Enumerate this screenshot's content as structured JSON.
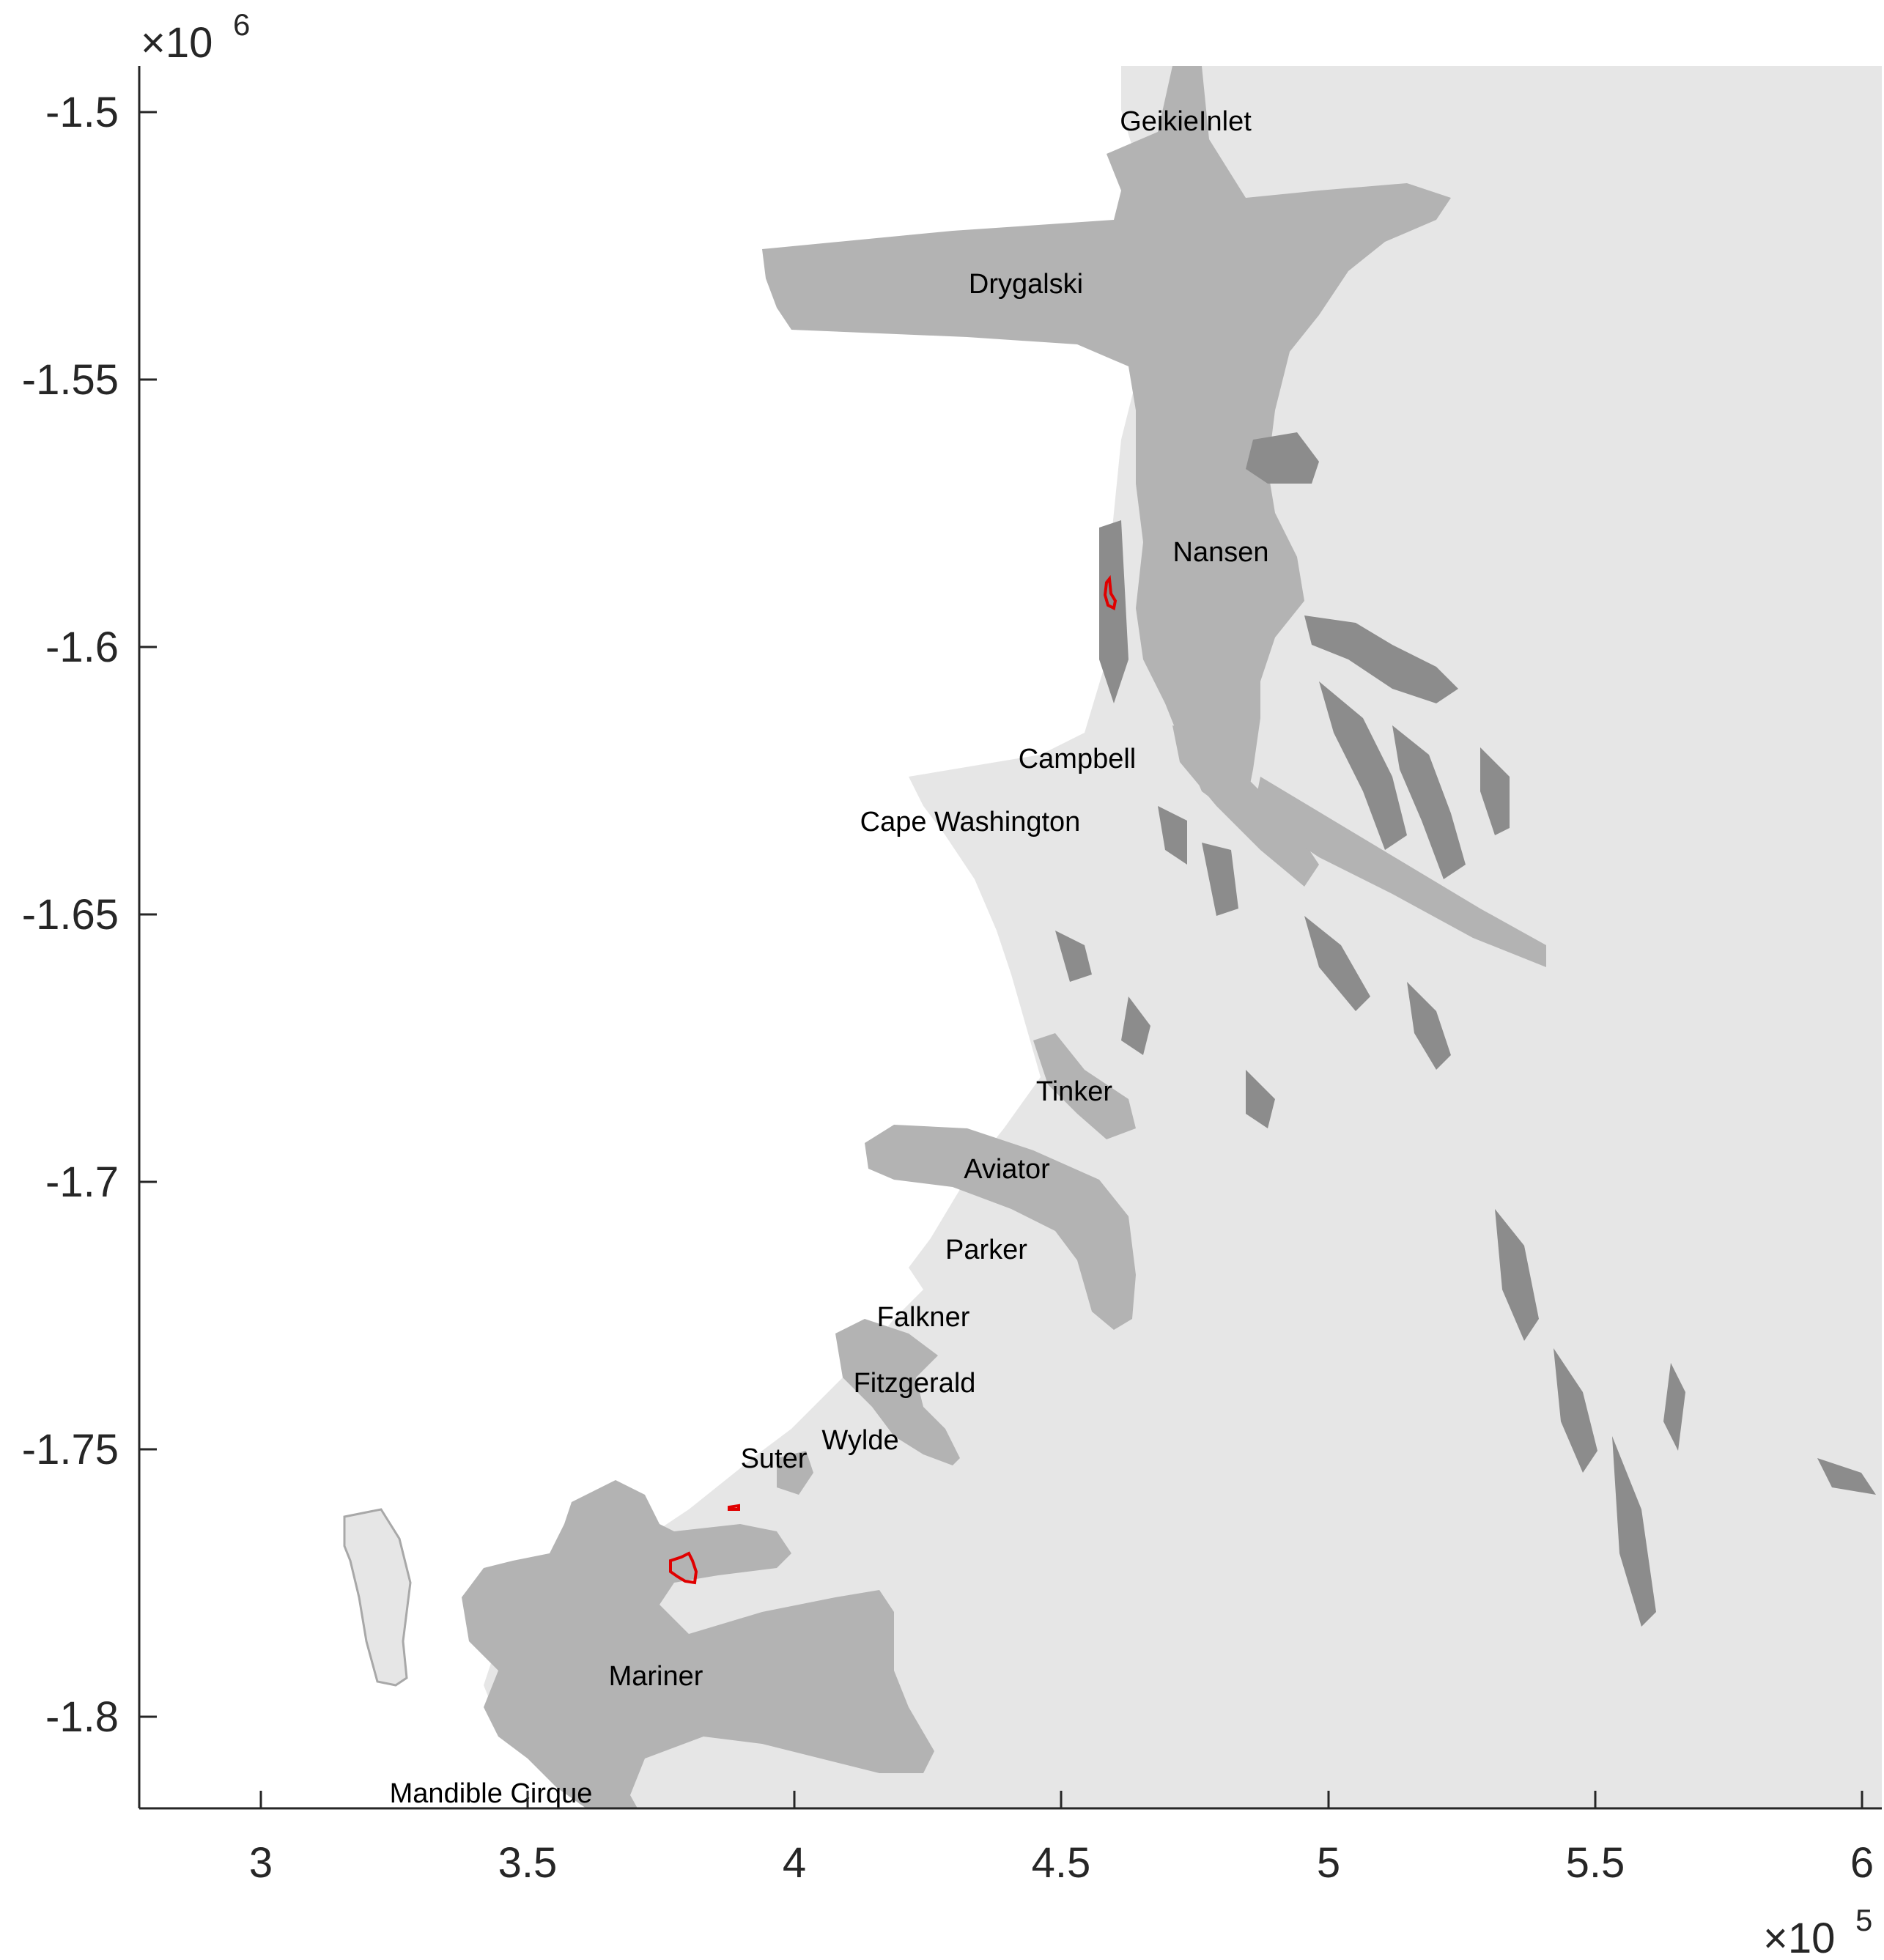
{
  "map": {
    "x_multiplier": {
      "base": "×10",
      "exp": "5"
    },
    "y_multiplier": {
      "base": "×10",
      "exp": "6"
    },
    "x_ticks": [
      "3",
      "3.5",
      "4",
      "4.5",
      "5",
      "5.5",
      "6"
    ],
    "y_ticks": [
      "-1.5",
      "-1.55",
      "-1.6",
      "-1.65",
      "-1.7",
      "-1.75",
      "-1.8"
    ],
    "places": [
      "GeikieInlet",
      "Drygalski",
      "Nansen",
      "Campbell",
      "Cape Washington",
      "Tinker",
      "Aviator",
      "Parker",
      "Falkner",
      "Fitzgerald",
      "Wylde",
      "Suter",
      "Mariner",
      "Mandible Cirque"
    ],
    "colors": {
      "land": "#e6e6e6",
      "glacier": "#b3b3b3",
      "rock": "#8c8c8c",
      "highlight": "#e00000",
      "sea": "#ffffff"
    }
  }
}
